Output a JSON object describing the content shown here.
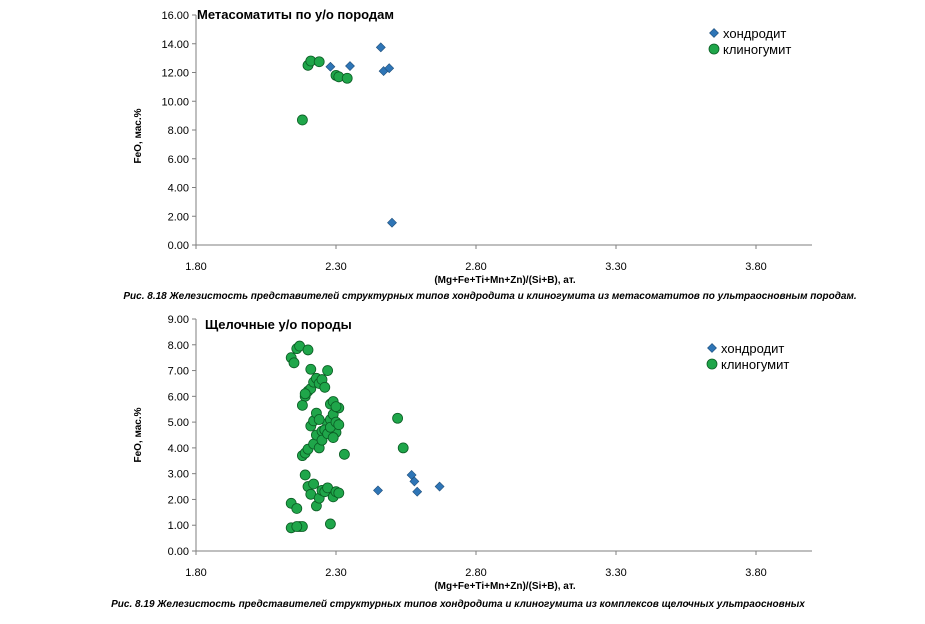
{
  "chart_data": [
    {
      "type": "scatter",
      "title": "Метасоматиты по у/о породам",
      "xlabel": "(Mg+Fe+Ti+Mn+Zn)/(Si+B), ат.",
      "ylabel": "FeO, мас.%",
      "xlim": [
        1.8,
        4.0
      ],
      "ylim": [
        0,
        16
      ],
      "xticks": [
        "1.80",
        "2.30",
        "2.80",
        "3.30",
        "3.80"
      ],
      "yticks": [
        "0.00",
        "2.00",
        "4.00",
        "6.00",
        "8.00",
        "10.00",
        "12.00",
        "14.00",
        "16.00"
      ],
      "grid": false,
      "legend_position": "top-right",
      "caption": "Рис. 8.18 Железистость представителей структурных типов хондродита и клиногумита из метасоматитов по ультраосновным породам.",
      "series": [
        {
          "name": "хондродит",
          "marker": "diamond",
          "color": "#2e75b6",
          "x": [
            2.28,
            2.35,
            2.46,
            2.47,
            2.49,
            2.5
          ],
          "y": [
            12.4,
            12.45,
            13.75,
            12.1,
            12.3,
            1.55
          ]
        },
        {
          "name": "клиногумит",
          "marker": "circle",
          "color": "#1fa64a",
          "x": [
            2.18,
            2.2,
            2.21,
            2.24,
            2.3,
            2.31,
            2.34
          ],
          "y": [
            8.7,
            12.5,
            12.8,
            12.75,
            11.8,
            11.7,
            11.6
          ]
        }
      ]
    },
    {
      "type": "scatter",
      "title": "Щелочные у/о породы",
      "xlabel": "(Mg+Fe+Ti+Mn+Zn)/(Si+B), ат.",
      "ylabel": "FeO, мас.%",
      "xlim": [
        1.8,
        4.0
      ],
      "ylim": [
        0,
        9
      ],
      "xticks": [
        "1.80",
        "2.30",
        "2.80",
        "3.30",
        "3.80"
      ],
      "yticks": [
        "0.00",
        "1.00",
        "2.00",
        "3.00",
        "4.00",
        "5.00",
        "6.00",
        "7.00",
        "8.00",
        "9.00"
      ],
      "grid": false,
      "legend_position": "top-right",
      "caption": "Рис. 8.19 Железистость представителей структурных типов хондродита и клиногумита из комплексов щелочных ультраосновных",
      "series": [
        {
          "name": "хондродит",
          "marker": "diamond",
          "color": "#2e75b6",
          "x": [
            2.45,
            2.57,
            2.58,
            2.59,
            2.67
          ],
          "y": [
            2.35,
            2.95,
            2.7,
            2.3,
            2.5
          ]
        },
        {
          "name": "клиногумит",
          "marker": "circle",
          "color": "#1fa64a",
          "x": [
            2.14,
            2.16,
            2.17,
            2.18,
            2.19,
            2.2,
            2.21,
            2.22,
            2.23,
            2.24,
            2.25,
            2.26,
            2.27,
            2.28,
            2.29,
            2.3,
            2.31,
            2.33,
            2.18,
            2.19,
            2.2,
            2.21,
            2.22,
            2.23,
            2.24,
            2.25,
            2.26,
            2.27,
            2.28,
            2.29,
            2.3,
            2.31,
            2.14,
            2.15,
            2.16,
            2.17,
            2.19,
            2.2,
            2.21,
            2.22,
            2.23,
            2.24,
            2.25,
            2.26,
            2.27,
            2.28,
            2.29,
            2.3,
            2.14,
            2.16,
            2.18,
            2.19,
            2.2,
            2.21,
            2.22,
            2.23,
            2.24,
            2.25,
            2.26,
            2.27,
            2.28,
            2.29,
            2.3,
            2.31,
            2.52,
            2.54
          ],
          "y": [
            1.85,
            1.65,
            0.95,
            0.95,
            2.95,
            2.5,
            2.2,
            2.6,
            1.75,
            2.05,
            2.35,
            2.3,
            2.45,
            1.05,
            2.1,
            2.3,
            2.25,
            3.75,
            3.7,
            3.8,
            3.95,
            4.85,
            4.15,
            4.5,
            4.0,
            4.65,
            4.7,
            4.95,
            5.1,
            5.3,
            4.6,
            5.55,
            7.5,
            7.3,
            7.85,
            7.95,
            6.0,
            6.2,
            6.3,
            6.55,
            6.7,
            6.5,
            6.65,
            6.35,
            7.0,
            5.7,
            5.8,
            5.6,
            0.9,
            0.95,
            5.65,
            6.1,
            7.8,
            7.05,
            5.05,
            5.35,
            5.1,
            4.3,
            4.7,
            4.55,
            4.8,
            4.4,
            5.0,
            4.9,
            5.15,
            4.0
          ]
        }
      ]
    }
  ]
}
